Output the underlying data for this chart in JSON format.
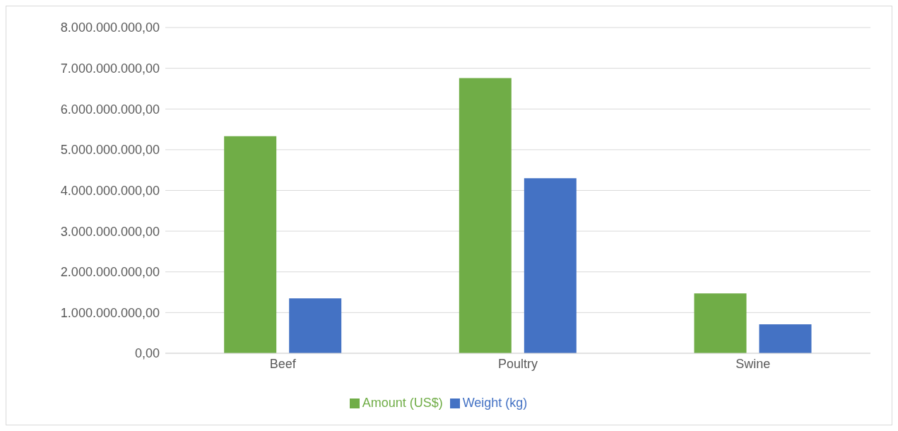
{
  "chart_data": {
    "type": "bar",
    "categories": [
      "Beef",
      "Poultry",
      "Swine"
    ],
    "series": [
      {
        "name": "Amount (US$)",
        "color": "#70ad47",
        "values": [
          5330000000,
          6760000000,
          1470000000
        ]
      },
      {
        "name": "Weight (kg)",
        "color": "#4472c4",
        "values": [
          1350000000,
          4300000000,
          710000000
        ]
      }
    ],
    "ylim": [
      0,
      8000000000
    ],
    "yticks": [
      {
        "value": 0,
        "label": "0,00"
      },
      {
        "value": 1000000000,
        "label": "1.000.000.000,00"
      },
      {
        "value": 2000000000,
        "label": "2.000.000.000,00"
      },
      {
        "value": 3000000000,
        "label": "3.000.000.000,00"
      },
      {
        "value": 4000000000,
        "label": "4.000.000.000,00"
      },
      {
        "value": 5000000000,
        "label": "5.000.000.000,00"
      },
      {
        "value": 6000000000,
        "label": "6.000.000.000,00"
      },
      {
        "value": 7000000000,
        "label": "7.000.000.000,00"
      },
      {
        "value": 8000000000,
        "label": "8.000.000.000,00"
      }
    ],
    "grid": "y",
    "legend": "bottom"
  }
}
